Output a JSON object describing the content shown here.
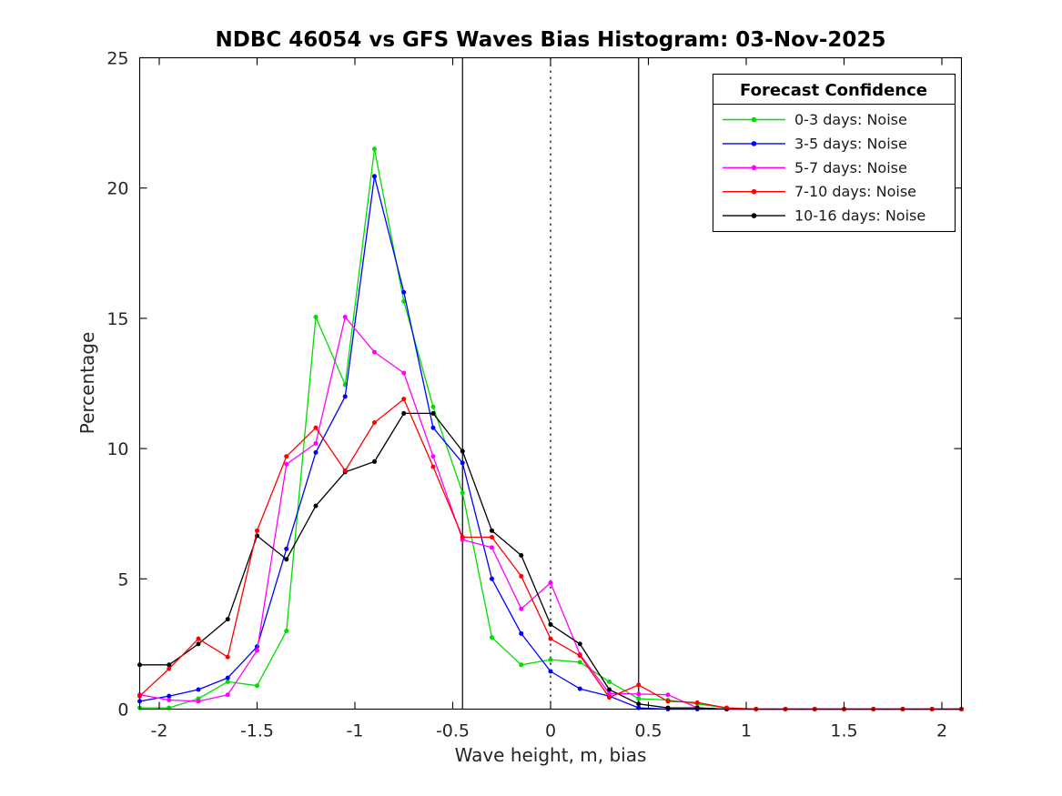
{
  "chart_data": {
    "type": "line",
    "title": "NDBC 46054 vs GFS Waves Bias Histogram: 03-Nov-2025",
    "xlabel": "Wave height, m, bias",
    "ylabel": "Percentage",
    "xlim": [
      -2.1,
      2.1
    ],
    "ylim": [
      0,
      25
    ],
    "xticks": [
      "-2",
      "-1.5",
      "-1",
      "-0.5",
      "0",
      "0.5",
      "1",
      "1.5",
      "2"
    ],
    "xtick_values": [
      -2,
      -1.5,
      -1,
      -0.5,
      0,
      0.5,
      1,
      1.5,
      2
    ],
    "yticks": [
      "0",
      "5",
      "10",
      "15",
      "20",
      "25"
    ],
    "ytick_values": [
      0,
      5,
      10,
      15,
      20,
      25
    ],
    "grid": false,
    "x": [
      -2.1,
      -1.95,
      -1.8,
      -1.65,
      -1.5,
      -1.35,
      -1.2,
      -1.05,
      -0.9,
      -0.75,
      -0.6,
      -0.45,
      -0.3,
      -0.15,
      0,
      0.15,
      0.3,
      0.45,
      0.6,
      0.75,
      0.9,
      1.05,
      1.2,
      1.35,
      1.5,
      1.65,
      1.8,
      1.95,
      2.1
    ],
    "series": [
      {
        "name": "0-3 days: Noise",
        "color": "#00dd00",
        "values": [
          0.05,
          0.05,
          0.4,
          1.05,
          0.9,
          3.0,
          15.05,
          12.45,
          21.5,
          15.65,
          11.6,
          8.3,
          2.75,
          1.7,
          1.9,
          1.8,
          1.05,
          0.4,
          0.35,
          0.2,
          0.05,
          0,
          0,
          0,
          0,
          0,
          0,
          0,
          0
        ]
      },
      {
        "name": "3-5 days: Noise",
        "color": "#0000ff",
        "values": [
          0.3,
          0.5,
          0.75,
          1.2,
          2.4,
          6.15,
          9.85,
          12.0,
          20.45,
          16.0,
          10.8,
          9.45,
          5.0,
          2.9,
          1.45,
          0.78,
          0.5,
          0.05,
          0,
          0,
          0,
          0,
          0,
          0,
          0,
          0,
          0,
          0,
          0
        ]
      },
      {
        "name": "5-7 days: Noise",
        "color": "#ff00ff",
        "values": [
          0.55,
          0.35,
          0.3,
          0.55,
          2.25,
          9.4,
          10.2,
          15.05,
          13.7,
          12.9,
          9.7,
          6.5,
          6.2,
          3.85,
          4.85,
          2.1,
          0.6,
          0.58,
          0.55,
          0.05,
          0,
          0,
          0,
          0,
          0,
          0,
          0,
          0,
          0
        ]
      },
      {
        "name": "7-10 days: Noise",
        "color": "#ff0000",
        "values": [
          0.5,
          1.55,
          2.7,
          2.0,
          6.85,
          9.7,
          10.8,
          9.15,
          11.0,
          11.9,
          9.3,
          6.6,
          6.6,
          5.1,
          2.7,
          2.05,
          0.45,
          0.93,
          0.3,
          0.25,
          0.05,
          0,
          0,
          0,
          0,
          0,
          0,
          0,
          0
        ]
      },
      {
        "name": "10-16 days: Noise",
        "color": "#000000",
        "values": [
          1.7,
          1.7,
          2.5,
          3.45,
          6.65,
          5.75,
          7.8,
          9.1,
          9.5,
          11.35,
          11.35,
          9.9,
          6.85,
          5.9,
          3.25,
          2.5,
          0.75,
          0.2,
          0.05,
          0.05,
          0,
          0,
          0,
          0,
          0,
          0,
          0,
          0,
          0
        ]
      }
    ],
    "reference_lines": [
      {
        "x": -0.45,
        "style": "solid",
        "color": "#000000"
      },
      {
        "x": 0,
        "style": "dotted",
        "color": "#000000"
      },
      {
        "x": 0.45,
        "style": "solid",
        "color": "#000000"
      }
    ],
    "legend": {
      "title": "Forecast Confidence",
      "position": "top-right"
    }
  }
}
